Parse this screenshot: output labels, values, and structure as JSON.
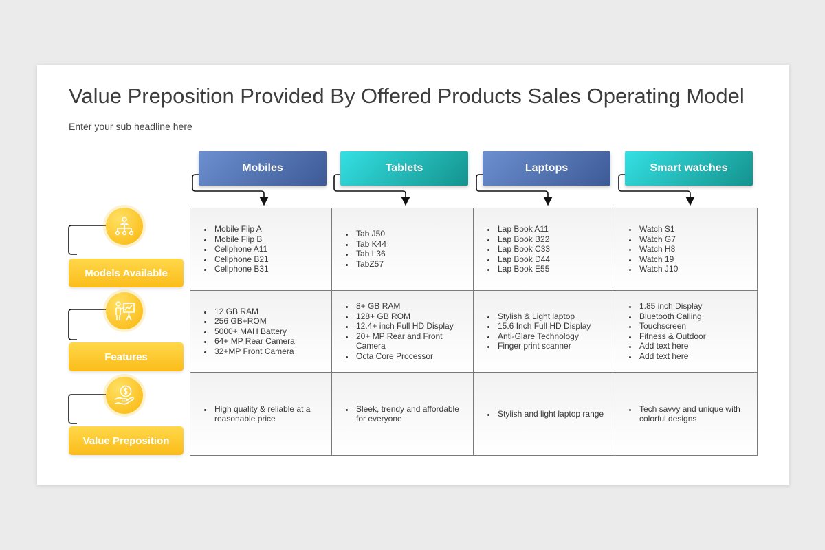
{
  "slide": {
    "title": "Value Preposition Provided By Offered Products Sales Operating Model",
    "subtitle": "Enter your sub headline here"
  },
  "colors": {
    "blue_header": "#4a68a8",
    "teal_header": "#1fb5b3",
    "label_yellow": "#fcc424",
    "grid_line": "#7a7a7a"
  },
  "columns": [
    {
      "label": "Mobiles",
      "style": "blue"
    },
    {
      "label": "Tablets",
      "style": "teal"
    },
    {
      "label": "Laptops",
      "style": "blue"
    },
    {
      "label": "Smart watches",
      "style": "teal"
    }
  ],
  "rows": [
    {
      "label": "Models Available",
      "icon": "org-chart-icon",
      "cells": [
        [
          "Mobile Flip A",
          "Mobile Flip B",
          "Cellphone A11",
          "Cellphone B21",
          "Cellphone B31"
        ],
        [
          "Tab J50",
          "Tab K44",
          "Tab L36",
          "TabZ57"
        ],
        [
          "Lap Book A11",
          "Lap Book B22",
          "Lap Book C33",
          "Lap Book D44",
          "Lap Book E55"
        ],
        [
          "Watch S1",
          "Watch G7",
          "Watch H8",
          "Watch 19",
          "Watch J10"
        ]
      ]
    },
    {
      "label": "Features",
      "icon": "presenter-icon",
      "cells": [
        [
          "12 GB RAM",
          "256 GB+ROM",
          "5000+ MAH Battery",
          "64+ MP Rear Camera",
          "32+MP Front Camera"
        ],
        [
          "8+ GB RAM",
          "128+ GB ROM",
          "12.4+ inch Full HD Display",
          "20+ MP Rear and Front Camera",
          "Octa Core Processor"
        ],
        [
          "Stylish & Light laptop",
          "15.6 Inch Full HD Display",
          "Anti-Glare Technology",
          "Finger print scanner"
        ],
        [
          "1.85 inch Display",
          "Bluetooth Calling",
          "Touchscreen",
          "Fitness & Outdoor",
          "Add text here",
          "Add text here"
        ]
      ]
    },
    {
      "label": "Value Preposition",
      "icon": "money-hand-icon",
      "cells": [
        [
          "High quality & reliable at a reasonable price"
        ],
        [
          "Sleek, trendy and affordable for everyone"
        ],
        [
          "Stylish and light laptop range"
        ],
        [
          "Tech savvy and unique with colorful designs"
        ]
      ]
    }
  ]
}
